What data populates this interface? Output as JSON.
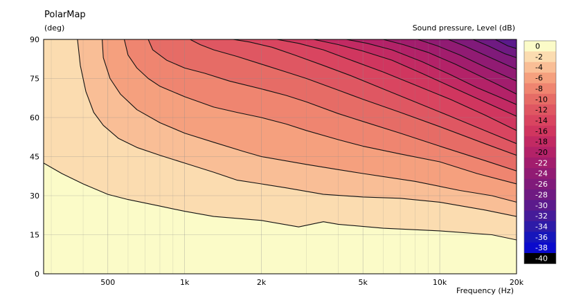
{
  "chart_data": {
    "type": "heatmap",
    "title": "PolarMap",
    "ylabel": "(deg)",
    "xlabel": "Frequency  (Hz)",
    "colorbar_label": "Sound pressure, Level  (dB)",
    "x_scale": "log",
    "xlim": [
      280,
      20000
    ],
    "ylim": [
      0,
      90
    ],
    "x_ticks": [
      {
        "value": 500,
        "label": "500"
      },
      {
        "value": 1000,
        "label": "1k"
      },
      {
        "value": 2000,
        "label": "2k"
      },
      {
        "value": 5000,
        "label": "5k"
      },
      {
        "value": 10000,
        "label": "10k"
      },
      {
        "value": 20000,
        "label": "20k"
      }
    ],
    "y_ticks": [
      {
        "value": 0,
        "label": "0"
      },
      {
        "value": 15,
        "label": "15"
      },
      {
        "value": 30,
        "label": "30"
      },
      {
        "value": 45,
        "label": "45"
      },
      {
        "value": 60,
        "label": "60"
      },
      {
        "value": 75,
        "label": "75"
      },
      {
        "value": 90,
        "label": "90"
      }
    ],
    "levels": [
      {
        "label": "0",
        "color": "#fbfbc8"
      },
      {
        "label": "-2",
        "color": "#fbdcb0"
      },
      {
        "label": "-4",
        "color": "#f9be96"
      },
      {
        "label": "-6",
        "color": "#f5a07e"
      },
      {
        "label": "-8",
        "color": "#ef8570"
      },
      {
        "label": "-10",
        "color": "#e66c66"
      },
      {
        "label": "-12",
        "color": "#df5762"
      },
      {
        "label": "-14",
        "color": "#d94560"
      },
      {
        "label": "-16",
        "color": "#d0365f"
      },
      {
        "label": "-18",
        "color": "#c22a63"
      },
      {
        "label": "-20",
        "color": "#b32268"
      },
      {
        "label": "-22",
        "color": "#a21d6d"
      },
      {
        "label": "-24",
        "color": "#911b73"
      },
      {
        "label": "-26",
        "color": "#801a7a"
      },
      {
        "label": "-28",
        "color": "#6f1a82"
      },
      {
        "label": "-30",
        "color": "#5b1a8c"
      },
      {
        "label": "-32",
        "color": "#451b99"
      },
      {
        "label": "-34",
        "color": "#2d1ba8"
      },
      {
        "label": "-36",
        "color": "#1616bb"
      },
      {
        "label": "-38",
        "color": "#0a0acc"
      },
      {
        "label": "-40",
        "color": "#000000"
      }
    ],
    "contours": [
      {
        "level": -2,
        "points": [
          [
            280,
            42.5
          ],
          [
            330,
            38.5
          ],
          [
            400,
            34.5
          ],
          [
            500,
            30.5
          ],
          [
            600,
            28.5
          ],
          [
            800,
            26
          ],
          [
            1000,
            24
          ],
          [
            1300,
            22
          ],
          [
            2000,
            20.5
          ],
          [
            2800,
            18
          ],
          [
            3500,
            20
          ],
          [
            4000,
            19
          ],
          [
            6000,
            17.5
          ],
          [
            10000,
            16.5
          ],
          [
            16000,
            15
          ],
          [
            20000,
            13
          ]
        ]
      },
      {
        "level": -4,
        "points": [
          [
            380,
            90
          ],
          [
            390,
            80
          ],
          [
            410,
            70
          ],
          [
            440,
            62
          ],
          [
            480,
            57
          ],
          [
            550,
            52
          ],
          [
            650,
            48.5
          ],
          [
            800,
            45.5
          ],
          [
            1000,
            42.5
          ],
          [
            1300,
            39
          ],
          [
            1600,
            36
          ],
          [
            2000,
            34.5
          ],
          [
            2500,
            33
          ],
          [
            3500,
            30.5
          ],
          [
            5000,
            29.5
          ],
          [
            7000,
            29
          ],
          [
            10000,
            27.5
          ],
          [
            15000,
            24.5
          ],
          [
            20000,
            22
          ]
        ]
      },
      {
        "level": -6,
        "points": [
          [
            475,
            90
          ],
          [
            480,
            83
          ],
          [
            510,
            75
          ],
          [
            560,
            69
          ],
          [
            650,
            63
          ],
          [
            800,
            58
          ],
          [
            1000,
            54
          ],
          [
            1300,
            50.5
          ],
          [
            1700,
            47
          ],
          [
            2000,
            45
          ],
          [
            3000,
            42
          ],
          [
            4000,
            40
          ],
          [
            5000,
            38.5
          ],
          [
            8000,
            35.5
          ],
          [
            12000,
            32
          ],
          [
            16000,
            30
          ],
          [
            20000,
            27.5
          ]
        ]
      },
      {
        "level": -8,
        "points": [
          [
            580,
            90
          ],
          [
            600,
            84
          ],
          [
            650,
            79
          ],
          [
            720,
            75
          ],
          [
            800,
            72
          ],
          [
            1000,
            68
          ],
          [
            1300,
            64
          ],
          [
            1600,
            62
          ],
          [
            2000,
            60
          ],
          [
            2500,
            57.5
          ],
          [
            3000,
            55
          ],
          [
            4000,
            51.5
          ],
          [
            5000,
            49
          ],
          [
            7000,
            46
          ],
          [
            10000,
            43
          ],
          [
            14000,
            38.5
          ],
          [
            20000,
            34.5
          ]
        ]
      },
      {
        "level": -10,
        "points": [
          [
            720,
            90
          ],
          [
            750,
            86
          ],
          [
            850,
            82
          ],
          [
            1000,
            79
          ],
          [
            1200,
            77
          ],
          [
            1500,
            74
          ],
          [
            2000,
            71
          ],
          [
            2500,
            68.5
          ],
          [
            3000,
            66
          ],
          [
            4000,
            61.5
          ],
          [
            5000,
            58.5
          ],
          [
            7000,
            54
          ],
          [
            10000,
            49
          ],
          [
            15000,
            43.5
          ],
          [
            20000,
            39.5
          ]
        ]
      },
      {
        "level": -12,
        "points": [
          [
            1050,
            90
          ],
          [
            1150,
            88
          ],
          [
            1300,
            86
          ],
          [
            1600,
            83.5
          ],
          [
            2000,
            80.5
          ],
          [
            2500,
            77.5
          ],
          [
            3000,
            75
          ],
          [
            4000,
            70.5
          ],
          [
            5000,
            67
          ],
          [
            7000,
            62
          ],
          [
            10000,
            56.5
          ],
          [
            15000,
            50
          ],
          [
            20000,
            45.5
          ]
        ]
      },
      {
        "level": -14,
        "points": [
          [
            1550,
            90
          ],
          [
            1800,
            89
          ],
          [
            2200,
            87
          ],
          [
            2700,
            84
          ],
          [
            3500,
            80
          ],
          [
            4500,
            76
          ],
          [
            6000,
            71
          ],
          [
            8000,
            66
          ],
          [
            11000,
            60.5
          ],
          [
            15000,
            55
          ],
          [
            20000,
            50
          ]
        ]
      },
      {
        "level": -16,
        "points": [
          [
            2300,
            90
          ],
          [
            2800,
            88.5
          ],
          [
            3500,
            86
          ],
          [
            4500,
            82
          ],
          [
            6000,
            77.5
          ],
          [
            8000,
            72.5
          ],
          [
            11000,
            67
          ],
          [
            15000,
            61
          ],
          [
            20000,
            55
          ]
        ]
      },
      {
        "level": -18,
        "points": [
          [
            3200,
            90
          ],
          [
            4000,
            88
          ],
          [
            5000,
            85.5
          ],
          [
            6500,
            82
          ],
          [
            8500,
            77
          ],
          [
            11000,
            72
          ],
          [
            15000,
            66
          ],
          [
            20000,
            60.5
          ]
        ]
      },
      {
        "level": -20,
        "points": [
          [
            4300,
            90
          ],
          [
            5200,
            88.5
          ],
          [
            6500,
            86
          ],
          [
            8500,
            81.5
          ],
          [
            11000,
            76.5
          ],
          [
            14000,
            71.5
          ],
          [
            17000,
            68
          ],
          [
            20000,
            65
          ]
        ]
      },
      {
        "level": -22,
        "points": [
          [
            6000,
            90
          ],
          [
            7200,
            88
          ],
          [
            9000,
            85
          ],
          [
            11500,
            80.5
          ],
          [
            14000,
            76.5
          ],
          [
            17000,
            72.5
          ],
          [
            20000,
            69
          ]
        ]
      },
      {
        "level": -24,
        "points": [
          [
            8200,
            90
          ],
          [
            9800,
            87.5
          ],
          [
            12000,
            84
          ],
          [
            15000,
            79.5
          ],
          [
            18000,
            76
          ],
          [
            20000,
            74
          ]
        ]
      },
      {
        "level": -26,
        "points": [
          [
            10800,
            90
          ],
          [
            12500,
            87.5
          ],
          [
            15000,
            84
          ],
          [
            18000,
            80.5
          ],
          [
            20000,
            78.5
          ]
        ]
      },
      {
        "level": -28,
        "points": [
          [
            13500,
            90
          ],
          [
            15500,
            87.5
          ],
          [
            18000,
            84.5
          ],
          [
            20000,
            83
          ]
        ]
      },
      {
        "level": -30,
        "points": [
          [
            16500,
            90
          ],
          [
            18500,
            87.5
          ],
          [
            20000,
            86.5
          ]
        ]
      }
    ]
  }
}
